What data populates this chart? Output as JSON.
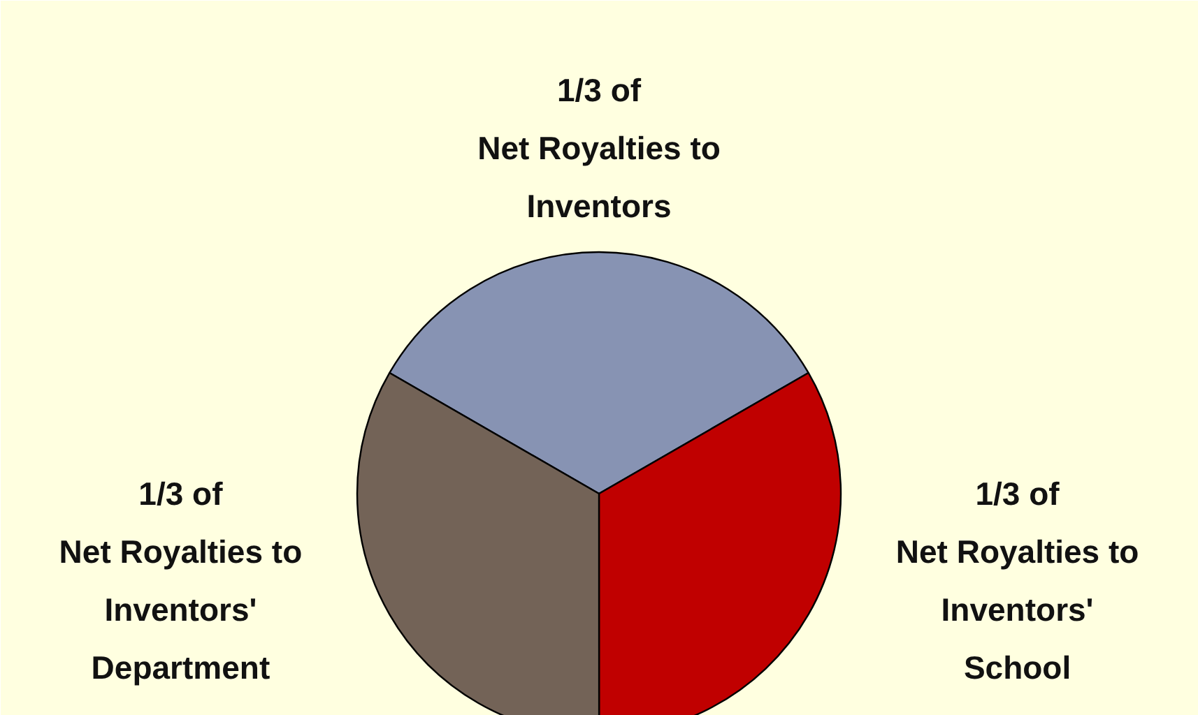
{
  "chart_data": {
    "type": "pie",
    "categories": [
      "1/3 of\nNet Royalties to\nInventors",
      "1/3 of\nNet Royalties to\nInventors'\nSchool",
      "1/3 of\nNet Royalties to\nInventors'\nDepartment"
    ],
    "values": [
      33.33,
      33.33,
      33.34
    ],
    "colors": [
      "#8793b3",
      "#c00000",
      "#736357"
    ]
  }
}
